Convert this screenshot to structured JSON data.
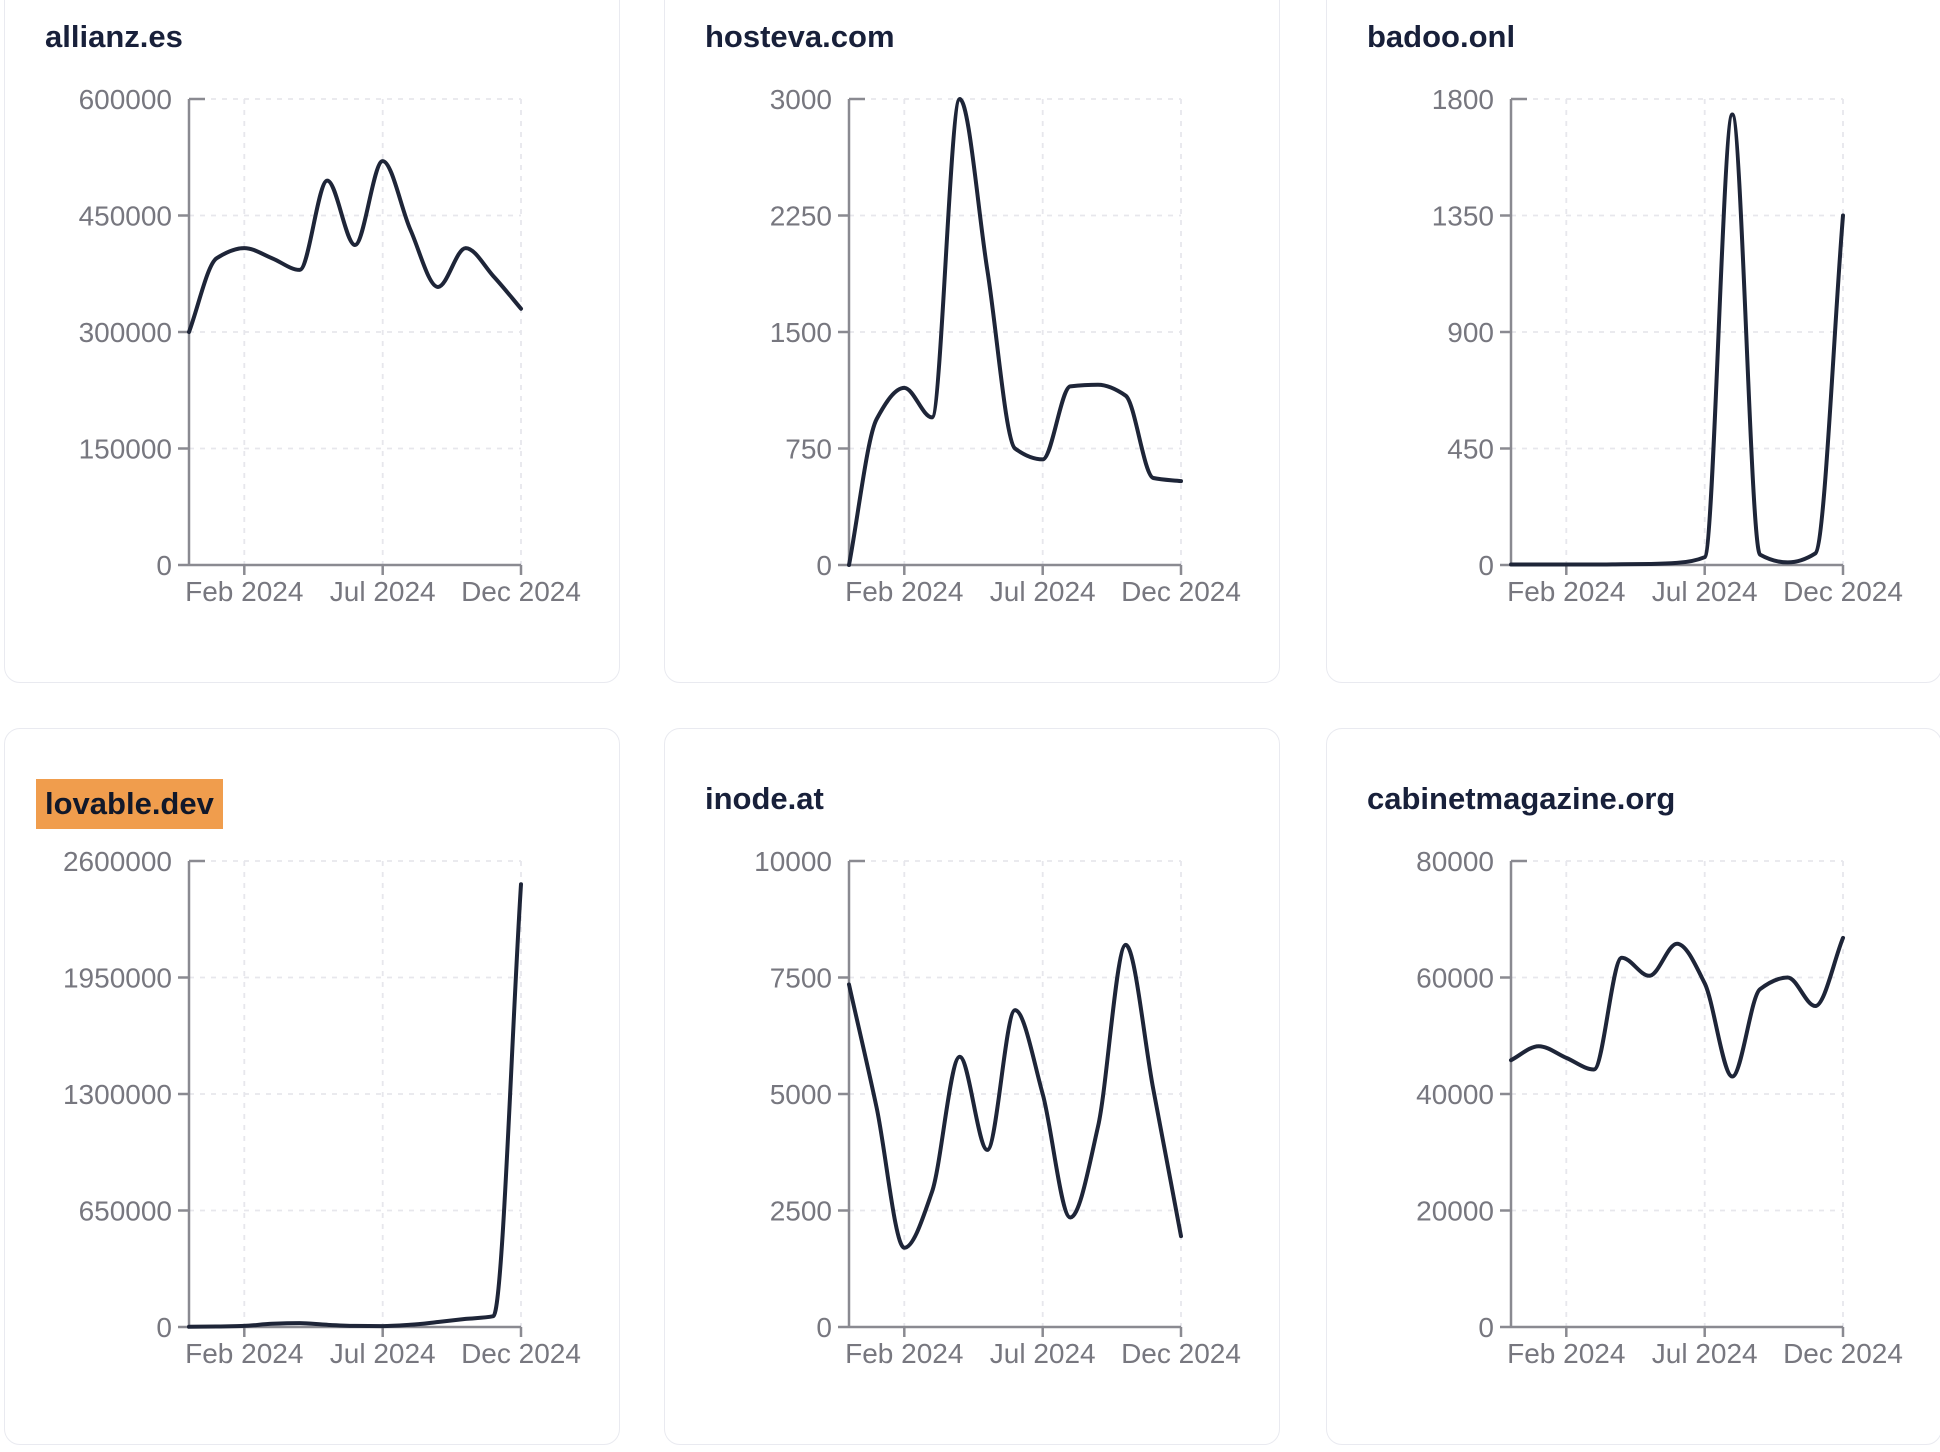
{
  "page": {
    "background": "#ffffff",
    "layout": "3x2-grid-of-domain-traffic-cards"
  },
  "colors": {
    "line": "#1e2538",
    "title": "#18203a",
    "tick_label": "#77777f",
    "axis": "#8a8a91",
    "grid": "#e7e7ec",
    "card_border": "#e9eaf0",
    "card_bg": "#ffffff",
    "highlight_bg": "#f09d4d",
    "highlight_text": "#11182a"
  },
  "x_tick_labels": [
    "Feb 2024",
    "Jul 2024",
    "Dec 2024"
  ],
  "chart_data": [
    {
      "type": "line",
      "domain": "allianz.es",
      "highlighted": false,
      "x": [
        "Dec 2023",
        "Jan 2024",
        "Feb 2024",
        "Mar 2024",
        "Apr 2024",
        "May 2024",
        "Jun 2024",
        "Jul 2024",
        "Aug 2024",
        "Sep 2024",
        "Oct 2024",
        "Nov 2024",
        "Dec 2024"
      ],
      "values": [
        300000,
        395000,
        408000,
        395000,
        380000,
        495000,
        412000,
        520000,
        432000,
        358000,
        408000,
        372000,
        330000
      ],
      "y_ticks": [
        600000,
        450000,
        300000,
        150000,
        0
      ],
      "ylim": [
        0,
        600000
      ],
      "x_ticks": [
        "Feb 2024",
        "Jul 2024",
        "Dec 2024"
      ],
      "grid": true,
      "legend": false
    },
    {
      "type": "line",
      "domain": "hosteva.com",
      "highlighted": false,
      "x": [
        "Dec 2023",
        "Jan 2024",
        "Feb 2024",
        "Mar 2024",
        "Apr 2024",
        "May 2024",
        "Jun 2024",
        "Jul 2024",
        "Aug 2024",
        "Sep 2024",
        "Oct 2024",
        "Nov 2024",
        "Dec 2024"
      ],
      "values": [
        0,
        940,
        1140,
        950,
        3000,
        1900,
        750,
        680,
        1150,
        1160,
        1090,
        560,
        540
      ],
      "y_ticks": [
        3000,
        2250,
        1500,
        750,
        0
      ],
      "ylim": [
        0,
        3000
      ],
      "x_ticks": [
        "Feb 2024",
        "Jul 2024",
        "Dec 2024"
      ],
      "grid": true,
      "legend": false
    },
    {
      "type": "line",
      "domain": "badoo.onl",
      "highlighted": false,
      "x": [
        "Dec 2023",
        "Jan 2024",
        "Feb 2024",
        "Mar 2024",
        "Apr 2024",
        "May 2024",
        "Jun 2024",
        "Jul 2024",
        "Aug 2024",
        "Sep 2024",
        "Oct 2024",
        "Nov 2024",
        "Dec 2024"
      ],
      "values": [
        2,
        2,
        2,
        2,
        3,
        4,
        8,
        30,
        1740,
        40,
        10,
        45,
        1350
      ],
      "y_ticks": [
        1800,
        1350,
        900,
        450,
        0
      ],
      "ylim": [
        0,
        1800
      ],
      "x_ticks": [
        "Feb 2024",
        "Jul 2024",
        "Dec 2024"
      ],
      "grid": true,
      "legend": false
    },
    {
      "type": "line",
      "domain": "lovable.dev",
      "highlighted": true,
      "x": [
        "Dec 2023",
        "Jan 2024",
        "Feb 2024",
        "Mar 2024",
        "Apr 2024",
        "May 2024",
        "Jun 2024",
        "Jul 2024",
        "Aug 2024",
        "Sep 2024",
        "Oct 2024",
        "Nov 2024",
        "Dec 2024"
      ],
      "values": [
        1000,
        3000,
        6000,
        18000,
        22000,
        12000,
        6000,
        5000,
        12000,
        28000,
        45000,
        60000,
        2470000
      ],
      "y_ticks": [
        2600000,
        1950000,
        1300000,
        650000,
        0
      ],
      "ylim": [
        0,
        2600000
      ],
      "x_ticks": [
        "Feb 2024",
        "Jul 2024",
        "Dec 2024"
      ],
      "grid": true,
      "legend": false
    },
    {
      "type": "line",
      "domain": "inode.at",
      "highlighted": false,
      "x": [
        "Dec 2023",
        "Jan 2024",
        "Feb 2024",
        "Mar 2024",
        "Apr 2024",
        "May 2024",
        "Jun 2024",
        "Jul 2024",
        "Aug 2024",
        "Sep 2024",
        "Oct 2024",
        "Nov 2024",
        "Dec 2024"
      ],
      "values": [
        7350,
        4700,
        1700,
        2900,
        5800,
        3800,
        6800,
        5000,
        2350,
        4300,
        8200,
        5100,
        1950
      ],
      "y_ticks": [
        10000,
        7500,
        5000,
        2500,
        0
      ],
      "ylim": [
        0,
        10000
      ],
      "x_ticks": [
        "Feb 2024",
        "Jul 2024",
        "Dec 2024"
      ],
      "grid": true,
      "legend": false
    },
    {
      "type": "line",
      "domain": "cabinetmagazine.org",
      "highlighted": false,
      "x": [
        "Dec 2023",
        "Jan 2024",
        "Feb 2024",
        "Mar 2024",
        "Apr 2024",
        "May 2024",
        "Jun 2024",
        "Jul 2024",
        "Aug 2024",
        "Sep 2024",
        "Oct 2024",
        "Nov 2024",
        "Dec 2024"
      ],
      "values": [
        45800,
        48200,
        46200,
        44200,
        63400,
        60300,
        65800,
        59000,
        43000,
        58000,
        60000,
        55100,
        66800
      ],
      "y_ticks": [
        80000,
        60000,
        40000,
        20000,
        0
      ],
      "ylim": [
        0,
        80000
      ],
      "x_ticks": [
        "Feb 2024",
        "Jul 2024",
        "Dec 2024"
      ],
      "grid": true,
      "legend": false
    }
  ]
}
